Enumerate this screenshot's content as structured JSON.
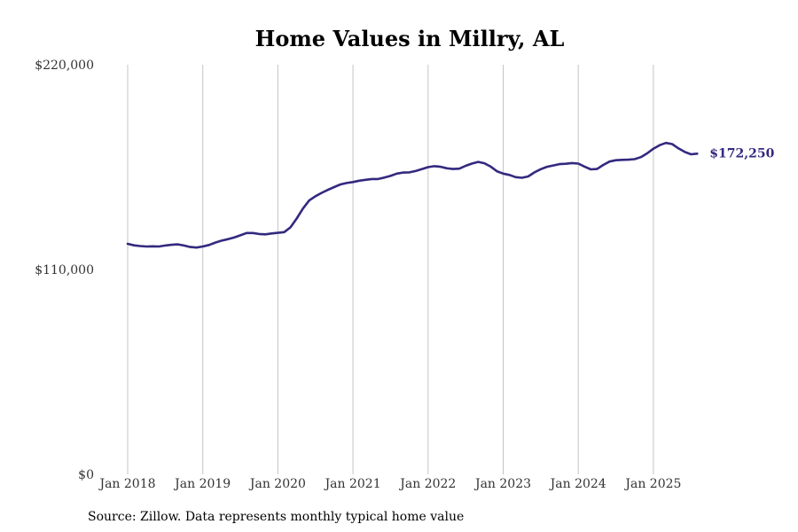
{
  "chart_data": {
    "type": "line",
    "title": "Home Values in Millry, AL",
    "xlabel": "",
    "ylabel": "",
    "x_ticks": [
      "Jan 2018",
      "Jan 2019",
      "Jan 2020",
      "Jan 2021",
      "Jan 2022",
      "Jan 2023",
      "Jan 2024",
      "Jan 2025"
    ],
    "y_ticks": [
      "$0",
      "$110,000",
      "$220,000"
    ],
    "ylim": [
      0,
      220000
    ],
    "grid": "vertical",
    "series": [
      {
        "color": "#33297f",
        "start": "2018-01",
        "frequency": "monthly",
        "values": [
          123800,
          123000,
          122600,
          122400,
          122500,
          122400,
          122900,
          123300,
          123500,
          122900,
          122100,
          121800,
          122400,
          123200,
          124500,
          125500,
          126300,
          127200,
          128400,
          129600,
          129600,
          129100,
          128900,
          129400,
          129700,
          130100,
          132600,
          137400,
          142700,
          147100,
          149400,
          151200,
          152800,
          154300,
          155700,
          156500,
          157000,
          157700,
          158200,
          158600,
          158600,
          159400,
          160300,
          161500,
          162100,
          162200,
          162900,
          163900,
          165000,
          165500,
          165200,
          164400,
          164000,
          164200,
          165700,
          166900,
          167800,
          167100,
          165300,
          162800,
          161500,
          160800,
          159600,
          159300,
          160000,
          162200,
          163900,
          165200,
          165900,
          166600,
          166800,
          167200,
          166900,
          165300,
          163800,
          164000,
          166200,
          168000,
          168700,
          168900,
          169000,
          169300,
          170400,
          172400,
          174900,
          176800,
          178000,
          177400,
          175100,
          173200,
          171900,
          172250
        ],
        "end_label": "$172,250"
      }
    ]
  },
  "footer": {
    "source": "Source: Zillow. Data represents monthly typical home value"
  }
}
